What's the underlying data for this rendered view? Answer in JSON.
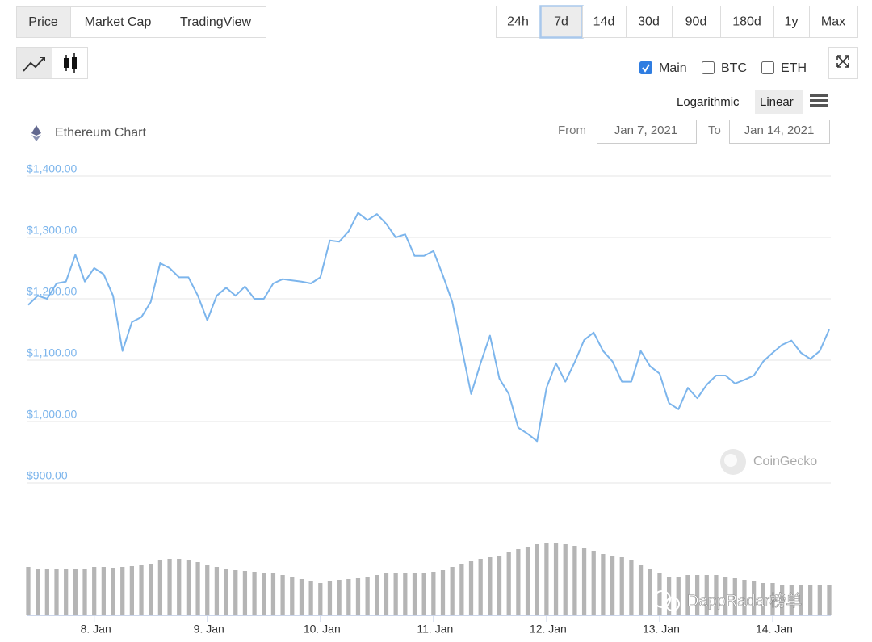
{
  "ui": {
    "tabs": [
      "Price",
      "Market Cap",
      "TradingView"
    ],
    "active_tab": 0,
    "ranges": [
      "24h",
      "7d",
      "14d",
      "30d",
      "90d",
      "180d",
      "1y",
      "Max"
    ],
    "active_range": 1,
    "checkboxes": [
      {
        "label": "Main",
        "checked": true
      },
      {
        "label": "BTC",
        "checked": false
      },
      {
        "label": "ETH",
        "checked": false
      }
    ],
    "scales": [
      "Logarithmic",
      "Linear"
    ],
    "active_scale": 1,
    "chart_name": "Ethereum Chart",
    "from_label": "From",
    "from_date": "Jan 7, 2021",
    "to_label": "To",
    "to_date": "Jan 14, 2021",
    "watermark": "CoinGecko",
    "overlay_text": "DappRadar榜单"
  },
  "chart_data": {
    "type": "line",
    "x": [
      10,
      12,
      14,
      16,
      18,
      20,
      22,
      24,
      26,
      28,
      30,
      32,
      34,
      36,
      38,
      40,
      42,
      44,
      46,
      48,
      50,
      52,
      54,
      56,
      58,
      60,
      62,
      64,
      66,
      68,
      70,
      72,
      74,
      76,
      78,
      80,
      82,
      84,
      86,
      88,
      90,
      92,
      94,
      96,
      98,
      100,
      102,
      104,
      106,
      108,
      110,
      112,
      114,
      116,
      118,
      120,
      122,
      124,
      126,
      128,
      130,
      132,
      134,
      136,
      138,
      140,
      142,
      144,
      146,
      148,
      150,
      152,
      154,
      156,
      158,
      160,
      162,
      164,
      166,
      168,
      170,
      172,
      174,
      176,
      178,
      180
    ],
    "xlim": [
      10,
      180
    ],
    "xticks": [
      {
        "value": 24,
        "label": "8. Jan"
      },
      {
        "value": 48,
        "label": "9. Jan"
      },
      {
        "value": 72,
        "label": "10. Jan"
      },
      {
        "value": 96,
        "label": "11. Jan"
      },
      {
        "value": 120,
        "label": "12. Jan"
      },
      {
        "value": 144,
        "label": "13. Jan"
      },
      {
        "value": 168,
        "label": "14. Jan"
      }
    ],
    "ylim": [
      900,
      1400
    ],
    "yticks": [
      {
        "value": 1400,
        "label": "$1,400.00"
      },
      {
        "value": 1300,
        "label": "$1,300.00"
      },
      {
        "value": 1200,
        "label": "$1,200.00"
      },
      {
        "value": 1100,
        "label": "$1,100.00"
      },
      {
        "value": 1000,
        "label": "$1,000.00"
      },
      {
        "value": 900,
        "label": "$900.00"
      }
    ],
    "y2lim": [
      0,
      100
    ],
    "grid": true,
    "series": [
      {
        "color": "#7cb5ec",
        "values": [
          1190,
          1205,
          1200,
          1225,
          1228,
          1272,
          1228,
          1250,
          1240,
          1205,
          1115,
          1162,
          1170,
          1195,
          1258,
          1250,
          1235,
          1235,
          1205,
          1165,
          1205,
          1218,
          1205,
          1220,
          1200,
          1200,
          1225,
          1232,
          1230,
          1228,
          1225,
          1235,
          1295,
          1293,
          1310,
          1340,
          1328,
          1338,
          1322,
          1300,
          1305,
          1270,
          1270,
          1278,
          1238,
          1195,
          1120,
          1045,
          1095,
          1140,
          1070,
          1045,
          990,
          980,
          968,
          1055,
          1095,
          1065,
          1097,
          1133,
          1145,
          1115,
          1098,
          1065,
          1065,
          1115,
          1090,
          1078,
          1030,
          1020,
          1055,
          1038,
          1060,
          1075,
          1075,
          1062,
          1068,
          1075,
          1098,
          1112,
          1125,
          1132,
          1112,
          1102,
          1115,
          1150
        ]
      },
      {
        "type": "bar",
        "axis": "y2",
        "color": "#b5b5b5",
        "values": [
          60,
          58,
          57,
          57,
          57,
          58,
          58,
          60,
          60,
          59,
          60,
          61,
          62,
          64,
          68,
          70,
          70,
          69,
          66,
          62,
          60,
          58,
          56,
          55,
          54,
          53,
          52,
          50,
          47,
          45,
          42,
          40,
          42,
          44,
          45,
          46,
          47,
          50,
          52,
          52,
          52,
          52,
          53,
          54,
          56,
          60,
          63,
          67,
          70,
          72,
          74,
          78,
          82,
          85,
          88,
          90,
          90,
          88,
          86,
          84,
          80,
          76,
          74,
          72,
          68,
          62,
          58,
          52,
          48,
          48,
          50,
          50,
          50,
          50,
          48,
          46,
          44,
          42,
          40,
          40,
          38,
          38,
          38,
          37,
          37,
          37
        ]
      }
    ]
  }
}
